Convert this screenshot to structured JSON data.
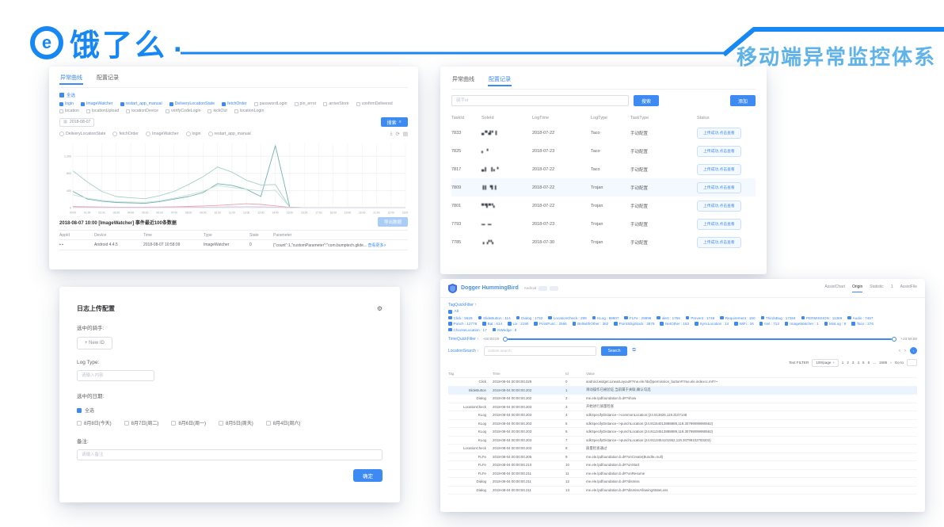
{
  "icons": {
    "logo_mark": "e",
    "calendar": "▦",
    "caret": "▾",
    "magnifier": "⌕",
    "download": "⤓",
    "refresh": "⟳",
    "dataview": "▤",
    "gear": "⚙",
    "copy": "⧉",
    "chev_left": "‹",
    "chev_right": "›",
    "arrow_down": "↓",
    "arrow_right": "›",
    "ellipsis": "...",
    "up": "↑"
  },
  "header": {
    "logo_text": "饿了么",
    "logo_dot": ".",
    "title": "移动端异常监控体系",
    "brand_color": "#1788f3",
    "title_color": "#5fb3e8"
  },
  "panel_curve": {
    "tabs": [
      {
        "label": "异常曲线",
        "state": "active"
      },
      {
        "label": "配置记录",
        "state": ""
      }
    ],
    "select_all_label": "全选",
    "tags": [
      {
        "label": "login",
        "state": "on"
      },
      {
        "label": "ImageWatcher",
        "state": "on"
      },
      {
        "label": "restart_app_manual",
        "state": "on"
      },
      {
        "label": "DeliveryLocationState",
        "state": "on"
      },
      {
        "label": "fetchOrder",
        "state": "on"
      },
      {
        "label": "passwordLogin",
        "state": "off"
      },
      {
        "label": "pin_error",
        "state": "off"
      },
      {
        "label": "arriveStore",
        "state": "off"
      },
      {
        "label": "confirmDelivered",
        "state": "off"
      },
      {
        "label": "location",
        "state": "off"
      },
      {
        "label": "locationUpload",
        "state": "off"
      },
      {
        "label": "locationDevice",
        "state": "off"
      },
      {
        "label": "verifyCodeLogin",
        "state": "off"
      },
      {
        "label": "kickOut",
        "state": "off"
      },
      {
        "label": "locationLogin",
        "state": "off"
      }
    ],
    "date_value": "2018-08-07",
    "search_button": "搜索",
    "radios": [
      "DeliveryLocationState",
      "fetchOrder",
      "ImageWatcher",
      "login",
      "restart_app_manual"
    ],
    "chart_data": {
      "type": "line",
      "x": [
        "00:00",
        "01:00",
        "02:00",
        "03:00",
        "04:00",
        "05:00",
        "06:00",
        "07:00",
        "08:00",
        "09:00",
        "10:00",
        "11:00",
        "12:00",
        "13:00",
        "14:00",
        "15:00",
        "16:00",
        "17:00",
        "18:00",
        "19:00",
        "20:00",
        "21:00",
        "22:00",
        "23:00"
      ],
      "ylim": [
        0,
        1500
      ],
      "yticks": [
        0,
        400,
        800,
        1200
      ],
      "yticklabels": [
        "0",
        "400",
        "800",
        "1,200"
      ],
      "grid": true,
      "legend_position": "none",
      "series": [
        {
          "name": "ImageWatcher",
          "color": "#6fb3ab",
          "values": [
            380,
            200,
            150,
            120,
            110,
            100,
            140,
            200,
            260,
            350,
            560,
            520,
            430,
            260,
            1450,
            10,
            0,
            0,
            0,
            0,
            0,
            0,
            0,
            0
          ]
        },
        {
          "name": "fetchOrder",
          "color": "#a3d2c3",
          "values": [
            860,
            600,
            380,
            260,
            230,
            210,
            280,
            380,
            540,
            720,
            950,
            830,
            640,
            530,
            540,
            5,
            0,
            0,
            0,
            0,
            0,
            0,
            0,
            0
          ]
        },
        {
          "name": "DeliveryLocationState",
          "color": "#c5e0d8",
          "values": [
            300,
            220,
            170,
            140,
            130,
            125,
            160,
            220,
            300,
            380,
            520,
            470,
            430,
            390,
            410,
            5,
            0,
            0,
            0,
            0,
            0,
            0,
            0,
            0
          ]
        },
        {
          "name": "login",
          "color": "#e8a2ad",
          "values": [
            25,
            18,
            14,
            12,
            10,
            10,
            14,
            20,
            28,
            38,
            52,
            70,
            90,
            75,
            40,
            5,
            0,
            0,
            0,
            0,
            0,
            0,
            0,
            0
          ]
        },
        {
          "name": "restart_app_manual",
          "color": "#d9c9e6",
          "values": [
            8,
            6,
            5,
            4,
            4,
            4,
            5,
            6,
            8,
            10,
            14,
            18,
            22,
            18,
            10,
            2,
            0,
            0,
            0,
            0,
            0,
            0,
            0,
            0
          ]
        }
      ]
    },
    "detail_title": "2018-08-07 10:00 [ImageWatcher] 事件最近100条数据",
    "export_button": "导出数据",
    "table": {
      "headers": [
        "AppId",
        "Device",
        "Time",
        "Type",
        "State",
        "Parameter"
      ],
      "rows": [
        {
          "appId": "▪ ▪",
          "device": "Android 4.4.5",
          "time": "2018-08-07 10:58:09",
          "type": "ImageWatcher",
          "state": "0",
          "parameter": "{\"count\":1,\"customParameter\":\"com.bumptech.glide...",
          "more": "查看更多>"
        }
      ]
    }
  },
  "panel_config": {
    "tabs": [
      {
        "label": "异常曲线",
        "state": ""
      },
      {
        "label": "配置记录",
        "state": "active"
      }
    ],
    "search_placeholder": "骑手id",
    "search_button": "搜索",
    "add_button": "添加",
    "status_label": "上传成功,点击查看",
    "table": {
      "headers": [
        "TaskId",
        "SoleId",
        "LogTime",
        "LogType",
        "TaskType",
        "Status"
      ],
      "rows": [
        {
          "taskId": "7833",
          "soleId": "▄▀▟▘▌",
          "logTime": "2018-07-22",
          "logType": "Taco",
          "taskType": "手动配置"
        },
        {
          "taskId": "7825",
          "soleId": "▖  ▘",
          "logTime": "2018-07-23",
          "logType": "Taco",
          "taskType": "手动配置"
        },
        {
          "taskId": "7817",
          "soleId": "▄▌ ▐▖▘",
          "logTime": "2018-07-22",
          "logType": "Taco",
          "taskType": "手动配置"
        },
        {
          "taskId": "7809",
          "soleId": "▐▌ ▜▐",
          "logTime": "2018-07-22",
          "logType": "Trojan",
          "taskType": "手动配置",
          "hl": "hl"
        },
        {
          "taskId": "7801",
          "soleId": "▀▜▀▚",
          "logTime": "2018-07-22",
          "logType": "Trojan",
          "taskType": "手动配置"
        },
        {
          "taskId": "7793",
          "soleId": "▬ ▬",
          "logTime": "2018-07-23",
          "logType": "Trojan",
          "taskType": "手动配置"
        },
        {
          "taskId": "7785",
          "soleId": "▗ ▞▚",
          "logTime": "2018-07-30",
          "logType": "Trojan",
          "taskType": "手动配置"
        }
      ]
    }
  },
  "panel_form": {
    "title": "日志上传配置",
    "rider_label": "选中的骑手:",
    "new_id_button": "+ New ID",
    "log_type_label": "Log Type:",
    "log_type_placeholder": "请输入内容",
    "date_label": "选中的日期:",
    "select_all_label": "全选",
    "dates": [
      "8月8日(今天)",
      "8月7日(周二)",
      "8月6日(周一)",
      "8月5日(周天)",
      "8月4日(周六)"
    ],
    "remark_label": "备注:",
    "remark_placeholder": "请输入备注",
    "confirm_button": "确定"
  },
  "panel_log": {
    "app_title": "Dogger HummingBird",
    "env_label": "Android",
    "tabs": [
      {
        "label": "AssistChart",
        "state": ""
      },
      {
        "label": "Origin",
        "state": "active"
      },
      {
        "label": "Statistic",
        "state": ""
      },
      {
        "label": "1",
        "state": ""
      },
      {
        "label": "AssistFile",
        "state": ""
      }
    ],
    "tag_filter_label": "TagQuickFilter ↑",
    "tag_all_label": "All",
    "tags": [
      "Click : 5629",
      "SlideButton : 114",
      "Dialog : 1732",
      "LocationCheck : 299",
      "KLog : 88807",
      "FLFe : 29996",
      "alert : 1756",
      "Prevent : 1748",
      "Requirement : 150",
      "ThirdsBug : 17284",
      "PERMISSION : 11369",
      "Audio : 7457",
      "Punch : 12778",
      "Bat : 614",
      "Lix : 2190",
      "PointFunc : 2566",
      "BeltwithOther : 382",
      "PointSiligStack : 3879",
      "NetOther : 163",
      "SyncLocation : 14",
      "WiFi : 26",
      "Net : 713",
      "ImageWatcher : 1",
      "MixLog : 8",
      "Taco : 276",
      "ChooseLocation : 17",
      "NWedge : 8"
    ],
    "time_filter_label": "TimeQuickFilter ↑",
    "time_start": "+00:00:00",
    "time_end": "+23:59:59",
    "location_label": "LocationSearch ↑",
    "search_placeholder": "custom search",
    "search_button": "Search",
    "pager": {
      "filter_label": "Text FILTER",
      "page_size": "100/page",
      "pages": [
        "1",
        "2",
        "3",
        "4",
        "5",
        "6",
        "...",
        "1585"
      ],
      "next": "›",
      "goto_label": "Go to"
    },
    "table": {
      "headers": [
        "Tag",
        "Time",
        "Id",
        "Value"
      ],
      "rows": [
        {
          "tag": "Click",
          "time": "2018-08-04 00:00:00.029",
          "id": "0",
          "value": "android.widget.LinearLayout#?me.ele.hb@permission_button#?me.ele.indexcc.m#?~"
        },
        {
          "tag": "SlideButton",
          "time": "2018-08-04 00:00:00.202",
          "id": "1",
          "value": "滑动操作已被验证,当前属于关联,确认勾选",
          "hl": "hl"
        },
        {
          "tag": "Dialog",
          "time": "2018-08-04 00:00:00.202",
          "id": "2",
          "value": "me.ele.lpdfoundation.b.d#?show"
        },
        {
          "tag": "LocationCheck",
          "time": "2018-08-04 00:00:00.203",
          "id": "3",
          "value": "开始进行质量检查"
        },
        {
          "tag": "KLog",
          "time": "2018-08-04 00:00:00.203",
          "id": "4",
          "value": "sdkSpecifyDistance-->commonLocation:(24.913826,119.3107148"
        },
        {
          "tag": "KLog",
          "time": "2018-08-04 00:00:00.203",
          "id": "5",
          "value": "sdkSpecifyDistance-->punchLocation:(24.91154013888889,119.30799099990562)"
        },
        {
          "tag": "KLog",
          "time": "2018-08-04 00:00:00.203",
          "id": "6",
          "value": "sdkSpecifyDistance-->punchLocation:(24.91134513888889,119.30799099990562)"
        },
        {
          "tag": "KLog",
          "time": "2018-08-04 00:00:00.203",
          "id": "7",
          "value": "sdkSpecifyDistance-->punchLocation:(24.9113454101562,119.30799102783203)"
        },
        {
          "tag": "LocationCheck",
          "time": "2018-08-04 00:00:00.203",
          "id": "8",
          "value": "质量检查通过"
        },
        {
          "tag": "FLFe",
          "time": "2018-08-04 00:00:00.205",
          "id": "9",
          "value": "me.ele.lpdfoundation.b.d#?onCreate(Bundle=null)"
        },
        {
          "tag": "FLFe",
          "time": "2018-08-04 00:00:00.210",
          "id": "10",
          "value": "me.ele.lpdfoundation.b.d#?onStart"
        },
        {
          "tag": "FLFe",
          "time": "2018-08-04 00:00:00.211",
          "id": "11",
          "value": "me.ele.lpdfoundation.b.d#?onResume"
        },
        {
          "tag": "Dialog",
          "time": "2018-08-04 00:00:00.211",
          "id": "12",
          "value": "me.ele.lpdfoundation.b.d#?dismiss"
        },
        {
          "tag": "Dialog",
          "time": "2018-08-04 00:00:00.211",
          "id": "13",
          "value": "me.ele.lpdfoundation.b.d#?dismissAllowingStateLoss"
        }
      ]
    }
  }
}
